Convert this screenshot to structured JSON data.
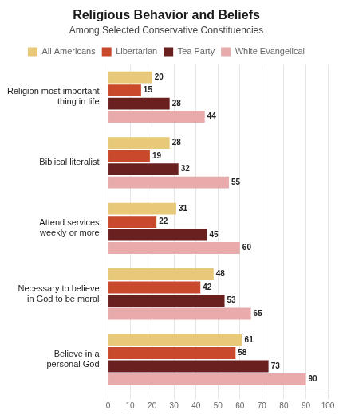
{
  "chart_data": {
    "type": "bar",
    "orientation": "horizontal",
    "title": "Religious Behavior and Beliefs",
    "subtitle": "Among Selected Conservative Constituencies",
    "categories": [
      "Religion most important\nthing in life",
      "Biblical literalist",
      "Attend services\nweekly or more",
      "Necessary to believe\nin God to be moral",
      "Believe in a\npersonal God"
    ],
    "series": [
      {
        "name": "All Americans",
        "color": "#E8C97A",
        "values": [
          20,
          28,
          31,
          48,
          61
        ]
      },
      {
        "name": "Libertarian",
        "color": "#C8492B",
        "values": [
          15,
          19,
          22,
          42,
          58
        ]
      },
      {
        "name": "Tea Party",
        "color": "#6B2020",
        "values": [
          28,
          32,
          45,
          53,
          73
        ]
      },
      {
        "name": "White Evangelical",
        "color": "#E8AAAA",
        "values": [
          44,
          55,
          60,
          65,
          90
        ]
      }
    ],
    "xlim": [
      0,
      100
    ],
    "xticks": [
      0,
      10,
      20,
      30,
      40,
      50,
      60,
      70,
      80,
      90,
      100
    ],
    "grid": true,
    "legend": "top",
    "data_labels": true
  }
}
